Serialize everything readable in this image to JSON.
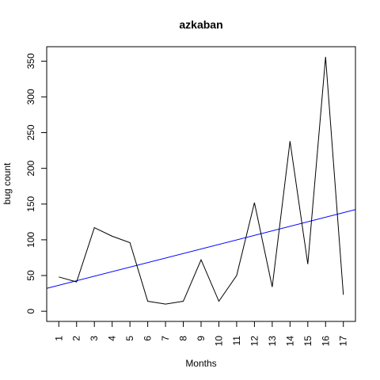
{
  "chart_data": {
    "type": "line",
    "title": "azkaban",
    "xlabel": "Months",
    "ylabel": "bug count",
    "x": [
      1,
      2,
      3,
      4,
      5,
      6,
      7,
      8,
      9,
      10,
      11,
      12,
      13,
      14,
      15,
      16,
      17
    ],
    "x_tick_labels": [
      "1",
      "2",
      "3",
      "4",
      "5",
      "6",
      "7",
      "8",
      "9",
      "10",
      "11",
      "12",
      "13",
      "14",
      "15",
      "16",
      "17"
    ],
    "y_ticks": [
      0,
      50,
      100,
      150,
      200,
      250,
      300,
      350
    ],
    "xlim": [
      0.32,
      17.68
    ],
    "ylim": [
      -14.24,
      370.24
    ],
    "grid": false,
    "series": [
      {
        "values": [
          48,
          41,
          117,
          105,
          96,
          14,
          10,
          14,
          72,
          14,
          50,
          152,
          34,
          238,
          66,
          356,
          23
        ],
        "color": "#000000"
      }
    ],
    "trend_line": {
      "intercept": 30,
      "slope": 6.35,
      "color": "#0000ff"
    }
  }
}
